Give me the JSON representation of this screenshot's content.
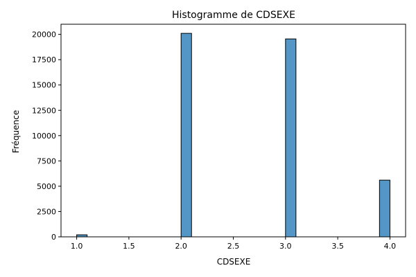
{
  "chart_data": {
    "type": "bar",
    "title": "Histogramme de CDSEXE",
    "xlabel": "CDSEXE",
    "ylabel": "Fréquence",
    "xlim": [
      0.85,
      4.15
    ],
    "ylim": [
      0,
      21000
    ],
    "xticks": [
      "1.0",
      "1.5",
      "2.0",
      "2.5",
      "3.0",
      "3.5",
      "4.0"
    ],
    "yticks": [
      "0",
      "2500",
      "5000",
      "7500",
      "10000",
      "12500",
      "15000",
      "17500",
      "20000"
    ],
    "bin_width": 0.1,
    "bins": [
      {
        "x0": 1.0,
        "x1": 1.1,
        "count": 200
      },
      {
        "x0": 2.0,
        "x1": 2.1,
        "count": 20100
      },
      {
        "x0": 2.9,
        "x1": 3.0,
        "count": 0
      },
      {
        "x0": 3.0,
        "x1": 3.1,
        "count": 19550
      },
      {
        "x0": 3.9,
        "x1": 4.0,
        "count": 5600
      }
    ],
    "grid": false,
    "color": "#5497c6"
  }
}
